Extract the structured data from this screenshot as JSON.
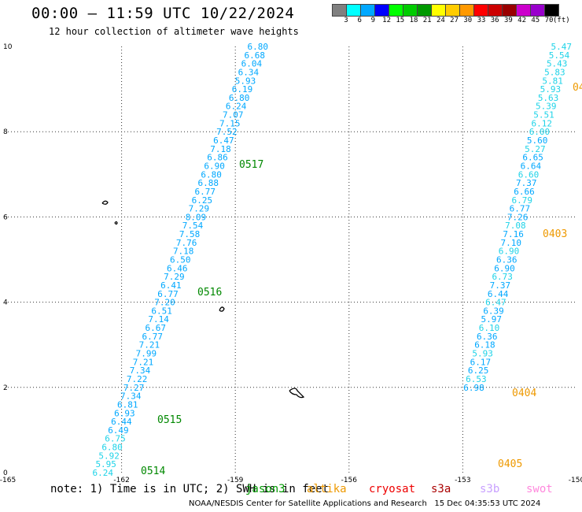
{
  "header": {
    "title": "00:00 – 11:59 UTC 10/22/2024",
    "subtitle": "12 hour collection of altimeter wave heights"
  },
  "legend": {
    "colors": [
      "#808080",
      "#00ffff",
      "#00a8ff",
      "#0000ff",
      "#00ff00",
      "#00cc00",
      "#009900",
      "#ffff00",
      "#ffcc00",
      "#ff9900",
      "#ff0000",
      "#cc0000",
      "#990000",
      "#cc00cc",
      "#9900cc",
      "#000000"
    ],
    "labels": [
      "3",
      "6",
      "9",
      "12",
      "15",
      "18",
      "21",
      "24",
      "27",
      "30",
      "33",
      "36",
      "39",
      "42",
      "45",
      "70"
    ],
    "units": "(ft)"
  },
  "map": {
    "x_ticks": [
      "-165",
      "-162",
      "-159",
      "-156",
      "-153",
      "-150"
    ],
    "y_ticks": [
      "0",
      "2",
      "4",
      "6",
      "8",
      "10"
    ],
    "x_range": [
      -165,
      -150
    ],
    "y_range": [
      0,
      10
    ],
    "val_color_a": "#00a8ff",
    "val_color_b": "#1fd3e8",
    "pass_color_green": "#008800",
    "pass_color_orange": "#ee9900",
    "track_west": [
      {
        "lat": 10.0,
        "v": "6.80"
      },
      {
        "lat": 9.8,
        "v": "6.68"
      },
      {
        "lat": 9.6,
        "v": "6.04"
      },
      {
        "lat": 9.4,
        "v": "6.34"
      },
      {
        "lat": 9.2,
        "v": "5.93"
      },
      {
        "lat": 9.0,
        "v": "6.19"
      },
      {
        "lat": 8.8,
        "v": "6.80"
      },
      {
        "lat": 8.6,
        "v": "6.24"
      },
      {
        "lat": 8.4,
        "v": "7.07"
      },
      {
        "lat": 8.2,
        "v": "7.15"
      },
      {
        "lat": 8.0,
        "v": "7.52"
      },
      {
        "lat": 7.8,
        "v": "6.47"
      },
      {
        "lat": 7.6,
        "v": "7.18"
      },
      {
        "lat": 7.4,
        "v": "6.86"
      },
      {
        "lat": 7.2,
        "v": "6.90"
      },
      {
        "lat": 7.0,
        "v": "6.80"
      },
      {
        "lat": 6.8,
        "v": "6.88"
      },
      {
        "lat": 6.6,
        "v": "6.77"
      },
      {
        "lat": 6.4,
        "v": "6.25"
      },
      {
        "lat": 6.2,
        "v": "7.29"
      },
      {
        "lat": 6.0,
        "v": "8.09"
      },
      {
        "lat": 5.8,
        "v": "7.54"
      },
      {
        "lat": 5.6,
        "v": "7.58"
      },
      {
        "lat": 5.4,
        "v": "7.76"
      },
      {
        "lat": 5.2,
        "v": "7.18"
      },
      {
        "lat": 5.0,
        "v": "6.50"
      },
      {
        "lat": 4.8,
        "v": "6.46"
      },
      {
        "lat": 4.6,
        "v": "7.29"
      },
      {
        "lat": 4.4,
        "v": "6.41"
      },
      {
        "lat": 4.2,
        "v": "6.77"
      },
      {
        "lat": 4.0,
        "v": "7.20"
      },
      {
        "lat": 3.8,
        "v": "6.51"
      },
      {
        "lat": 3.6,
        "v": "7.14"
      },
      {
        "lat": 3.4,
        "v": "6.67"
      },
      {
        "lat": 3.2,
        "v": "6.77"
      },
      {
        "lat": 3.0,
        "v": "7.21"
      },
      {
        "lat": 2.8,
        "v": "7.99"
      },
      {
        "lat": 2.6,
        "v": "7.21"
      },
      {
        "lat": 2.4,
        "v": "7.34"
      },
      {
        "lat": 2.2,
        "v": "7.22"
      },
      {
        "lat": 2.0,
        "v": "7.27"
      },
      {
        "lat": 1.8,
        "v": "7.34"
      },
      {
        "lat": 1.6,
        "v": "6.81"
      },
      {
        "lat": 1.4,
        "v": "6.93"
      },
      {
        "lat": 1.2,
        "v": "6.44"
      },
      {
        "lat": 1.0,
        "v": "6.49"
      },
      {
        "lat": 0.8,
        "v": "6.75"
      },
      {
        "lat": 0.6,
        "v": "6.80"
      },
      {
        "lat": 0.4,
        "v": "5.92"
      },
      {
        "lat": 0.2,
        "v": "5.95"
      },
      {
        "lat": 0.0,
        "v": "6.24"
      }
    ],
    "track_east": [
      {
        "lat": 10.0,
        "v": "5.47"
      },
      {
        "lat": 9.8,
        "v": "5.54"
      },
      {
        "lat": 9.6,
        "v": "5.43"
      },
      {
        "lat": 9.4,
        "v": "5.83"
      },
      {
        "lat": 9.2,
        "v": "5.81"
      },
      {
        "lat": 9.0,
        "v": "5.93"
      },
      {
        "lat": 8.8,
        "v": "5.63"
      },
      {
        "lat": 8.6,
        "v": "5.39"
      },
      {
        "lat": 8.4,
        "v": "5.51"
      },
      {
        "lat": 8.2,
        "v": "6.12"
      },
      {
        "lat": 8.0,
        "v": "6.00"
      },
      {
        "lat": 7.8,
        "v": "5.60"
      },
      {
        "lat": 7.6,
        "v": "5.27"
      },
      {
        "lat": 7.4,
        "v": "6.65"
      },
      {
        "lat": 7.2,
        "v": "6.64"
      },
      {
        "lat": 7.0,
        "v": "6.60"
      },
      {
        "lat": 6.8,
        "v": "7.37"
      },
      {
        "lat": 6.6,
        "v": "6.66"
      },
      {
        "lat": 6.4,
        "v": "6.79"
      },
      {
        "lat": 6.2,
        "v": "6.77"
      },
      {
        "lat": 6.0,
        "v": "7.26"
      },
      {
        "lat": 5.8,
        "v": "7.08"
      },
      {
        "lat": 5.6,
        "v": "7.16"
      },
      {
        "lat": 5.4,
        "v": "7.10"
      },
      {
        "lat": 5.2,
        "v": "6.90"
      },
      {
        "lat": 5.0,
        "v": "6.36"
      },
      {
        "lat": 4.8,
        "v": "6.90"
      },
      {
        "lat": 4.6,
        "v": "6.73"
      },
      {
        "lat": 4.4,
        "v": "7.37"
      },
      {
        "lat": 4.2,
        "v": "6.44"
      },
      {
        "lat": 4.0,
        "v": "6.47"
      },
      {
        "lat": 3.8,
        "v": "6.39"
      },
      {
        "lat": 3.6,
        "v": "5.97"
      },
      {
        "lat": 3.4,
        "v": "6.10"
      },
      {
        "lat": 3.2,
        "v": "6.36"
      },
      {
        "lat": 3.0,
        "v": "6.18"
      },
      {
        "lat": 2.8,
        "v": "5.93"
      },
      {
        "lat": 2.6,
        "v": "6.17"
      },
      {
        "lat": 2.4,
        "v": "6.25"
      },
      {
        "lat": 2.2,
        "v": "6.53"
      },
      {
        "lat": 2.0,
        "v": "6.98"
      }
    ],
    "pass_labels": [
      {
        "text": "0517",
        "color": "green"
      },
      {
        "text": "0516",
        "color": "green"
      },
      {
        "text": "0515",
        "color": "green"
      },
      {
        "text": "0514",
        "color": "green"
      },
      {
        "text": "0403",
        "color": "orange"
      },
      {
        "text": "0404",
        "color": "orange"
      },
      {
        "text": "0405",
        "color": "orange"
      },
      {
        "text": "04",
        "color": "orange"
      }
    ]
  },
  "note": {
    "text": "note: 1) Time is in UTC; 2) SWH is in feet",
    "satellites": [
      {
        "name": "jason3",
        "color": "#009900"
      },
      {
        "name": "altika",
        "color": "#ee9900"
      },
      {
        "name": "cryosat",
        "color": "#ee0000"
      },
      {
        "name": "s3a",
        "color": "#aa0000"
      },
      {
        "name": "s3b",
        "color": "#c8a0ff"
      },
      {
        "name": "swot",
        "color": "#ff88dd"
      }
    ]
  },
  "footer": {
    "credit": "NOAA/NESDIS Center for Satellite Applications and Research",
    "timestamp": "15 Dec 04:35:53 UTC 2024"
  }
}
